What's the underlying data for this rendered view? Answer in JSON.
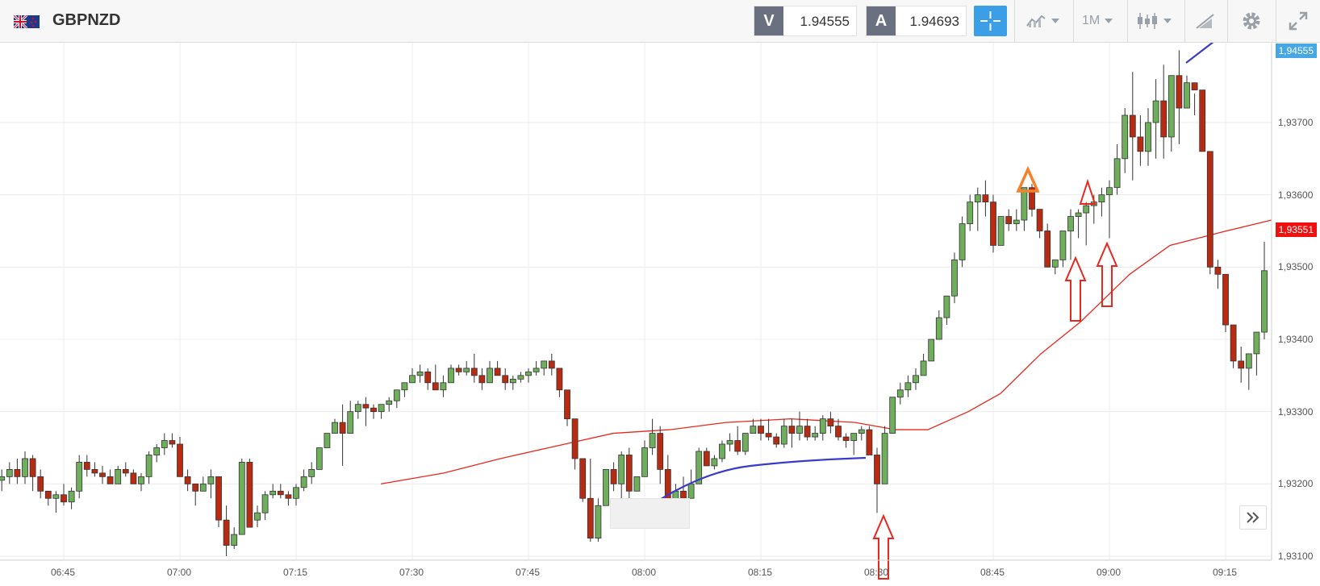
{
  "toolbar": {
    "symbol": "GBPNZD",
    "bid_letter": "V",
    "bid_value": "1.94555",
    "ask_letter": "A",
    "ask_value": "1.94693",
    "timeframe": "1M",
    "flag_icon": "uk-nz-flag-icon",
    "icons": [
      "crosshair-icon",
      "indicators-icon",
      "candlestick-icon",
      "drawing-icon",
      "gear-icon",
      "fullscreen-icon"
    ]
  },
  "chart_data": {
    "type": "candlestick",
    "symbol": "GBPNZD",
    "yticks": [
      "1,94555",
      "1,93700",
      "1,93600",
      "1,93500",
      "1,93400",
      "1,93300",
      "1,93200",
      "1,93100"
    ],
    "xticks": [
      "06:45",
      "07:00",
      "07:15",
      "07:30",
      "07:45",
      "08:00",
      "08:15",
      "08:30",
      "08:45",
      "09:00",
      "09:15"
    ],
    "current_price_label": "1,94555",
    "ma_price_label": "1,93551",
    "colors": {
      "up": "#6fae5c",
      "down": "#b72b12",
      "ma": "#e8281e",
      "trendline": "#3a3acc",
      "arrow": "#e8281e",
      "triangle_orange": "#f5822a",
      "axis_tag_blue": "#45a7e3",
      "axis_tag_red": "#f01010"
    },
    "candles_note": "1-minute candles from ~06:37 to ~09:21"
  },
  "ui": {
    "scroll_next_icon": "double-chevron-right-icon"
  }
}
